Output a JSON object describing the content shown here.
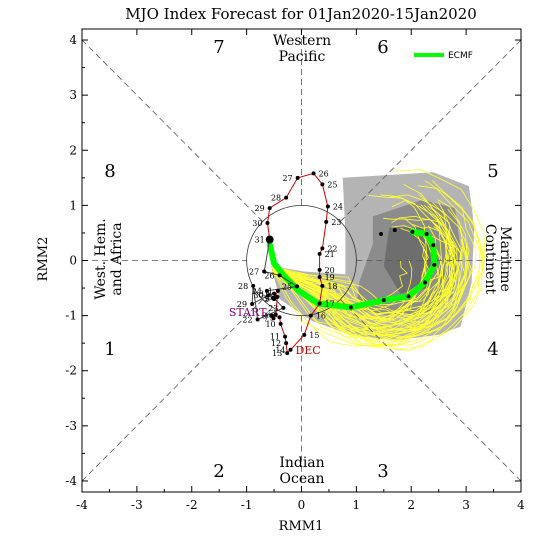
{
  "chart_data": {
    "type": "scatter",
    "title": "MJO Index Forecast for 01Jan2020-15Jan2020",
    "xlabel": "RMM1",
    "ylabel": "RMM2",
    "xlim": [
      -4,
      4
    ],
    "ylim": [
      -4.2,
      4.2
    ],
    "xticks": [
      "-4",
      "-3",
      "-2",
      "-1",
      "0",
      "1",
      "2",
      "3",
      "4"
    ],
    "yticks": [
      "-4",
      "-3",
      "-2",
      "-1",
      "0",
      "1",
      "2",
      "3",
      "4"
    ],
    "phase_labels": [
      {
        "phase": "1",
        "x": -3.5,
        "y": -1.6
      },
      {
        "phase": "2",
        "x": -1.5,
        "y": -3.8
      },
      {
        "phase": "3",
        "x": 1.5,
        "y": -3.8
      },
      {
        "phase": "4",
        "x": 3.5,
        "y": -1.6
      },
      {
        "phase": "5",
        "x": 3.5,
        "y": 1.6
      },
      {
        "phase": "6",
        "x": 1.5,
        "y": 3.85
      },
      {
        "phase": "7",
        "x": -1.5,
        "y": 3.85
      },
      {
        "phase": "8",
        "x": -3.5,
        "y": 1.6
      }
    ],
    "region_labels": {
      "top": [
        "Western",
        "Pacific"
      ],
      "bottom": [
        "Indian",
        "Ocean"
      ],
      "left": [
        "West. Hem.",
        "and Africa"
      ],
      "right": [
        "Maritime",
        "Continent"
      ]
    },
    "legend": {
      "label": "ECMF",
      "color": "#00ff00",
      "position": "top-right"
    },
    "observed": {
      "color": "#cc0000",
      "points": [
        {
          "day": "1",
          "x": -0.43,
          "y": -0.55
        },
        {
          "day": "2",
          "x": -0.5,
          "y": -0.7
        },
        {
          "day": "3",
          "x": -0.52,
          "y": -0.68
        },
        {
          "day": "4",
          "x": -0.48,
          "y": -0.67
        },
        {
          "day": "5",
          "x": -0.44,
          "y": -0.66
        },
        {
          "day": "6",
          "x": -0.47,
          "y": -0.98
        },
        {
          "day": "7",
          "x": -0.51,
          "y": -1.05
        },
        {
          "day": "8",
          "x": -0.54,
          "y": -1.0
        },
        {
          "day": "9",
          "x": -0.4,
          "y": -1.03
        },
        {
          "day": "10",
          "x": -0.38,
          "y": -1.15
        },
        {
          "day": "11",
          "x": -0.3,
          "y": -1.38
        },
        {
          "day": "12",
          "x": -0.28,
          "y": -1.5
        },
        {
          "day": "13",
          "x": -0.26,
          "y": -1.68
        },
        {
          "day": "14",
          "x": -0.2,
          "y": -1.62
        },
        {
          "day": "15",
          "x": 0.05,
          "y": -1.35
        },
        {
          "day": "16",
          "x": 0.17,
          "y": -1.0
        },
        {
          "day": "17",
          "x": 0.33,
          "y": -0.78
        },
        {
          "day": "18",
          "x": 0.38,
          "y": -0.46
        },
        {
          "day": "19",
          "x": 0.33,
          "y": -0.3
        },
        {
          "day": "20",
          "x": 0.33,
          "y": -0.17
        },
        {
          "day": "21",
          "x": 0.33,
          "y": 0.12
        },
        {
          "day": "22",
          "x": 0.38,
          "y": 0.22
        },
        {
          "day": "23",
          "x": 0.45,
          "y": 0.7
        },
        {
          "day": "24",
          "x": 0.48,
          "y": 0.98
        },
        {
          "day": "25",
          "x": 0.38,
          "y": 1.38
        },
        {
          "day": "26",
          "x": 0.22,
          "y": 1.58
        },
        {
          "day": "27",
          "x": -0.07,
          "y": 1.5
        },
        {
          "day": "28",
          "x": -0.28,
          "y": 1.14
        },
        {
          "day": "29",
          "x": -0.58,
          "y": 0.95
        },
        {
          "day": "30",
          "x": -0.62,
          "y": 0.68
        },
        {
          "day": "31",
          "x": -0.58,
          "y": 0.38
        },
        {
          "day": "27",
          "x": -0.68,
          "y": -0.2
        },
        {
          "day": "26",
          "x": -0.4,
          "y": -0.27
        },
        {
          "day": "25",
          "x": -0.08,
          "y": -0.47
        },
        {
          "day": "24",
          "x": -0.63,
          "y": -0.55
        },
        {
          "day": "23",
          "x": -0.33,
          "y": -0.86
        },
        {
          "day": "22",
          "x": -0.8,
          "y": -1.07
        },
        {
          "day": "28",
          "x": -0.88,
          "y": -0.46
        },
        {
          "day": "29",
          "x": -0.9,
          "y": -0.79
        },
        {
          "day": "30",
          "x": -0.6,
          "y": -0.63
        },
        {
          "day": "31",
          "x": -0.5,
          "y": -0.6
        }
      ],
      "labels": [
        {
          "text": "START",
          "color": "#800080",
          "x": -0.98,
          "y": -0.93
        },
        {
          "text": "DEC",
          "color": "#cc0000",
          "x": 0.12,
          "y": -1.62
        }
      ]
    },
    "ensemble_mean": {
      "name": "ECMF",
      "color": "#00ff00",
      "x": [
        -0.58,
        -0.5,
        -0.3,
        -0.05,
        0.3,
        0.9,
        1.5,
        1.95,
        2.25,
        2.42,
        2.4,
        2.28,
        2.02
      ],
      "y": [
        0.3,
        -0.05,
        -0.3,
        -0.55,
        -0.78,
        -0.85,
        -0.72,
        -0.65,
        -0.4,
        -0.08,
        0.28,
        0.48,
        0.52
      ]
    },
    "ensemble_mean_points": {
      "x": [
        0.9,
        1.5,
        1.95,
        2.25,
        2.42,
        2.4,
        2.28,
        2.02,
        1.7,
        1.45
      ],
      "y": [
        -0.85,
        -0.72,
        -0.65,
        -0.4,
        -0.08,
        0.28,
        0.48,
        0.52,
        0.55,
        0.48
      ]
    }
  }
}
